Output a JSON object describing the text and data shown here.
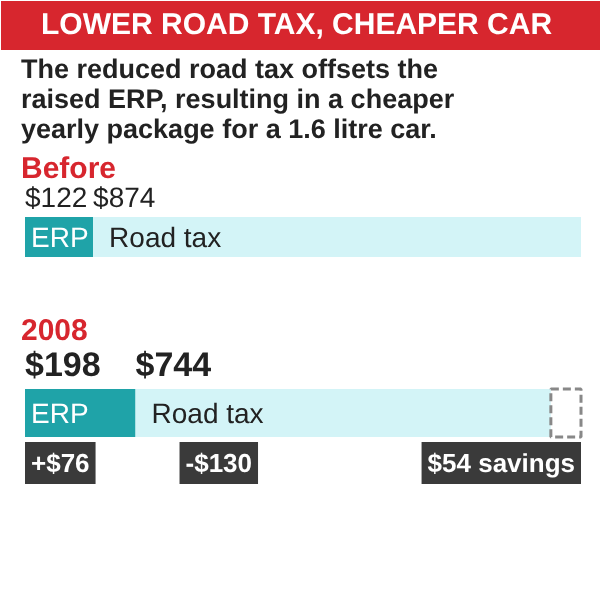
{
  "chart_data": {
    "type": "bar",
    "orientation": "horizontal",
    "stacked": true,
    "title": "LOWER ROAD TAX, CHEAPER CAR",
    "subtitle": "The reduced road tax offsets the raised ERP, resulting in a cheaper yearly package for a 1.6 litre car.",
    "categories": [
      "Before",
      "2008"
    ],
    "series": [
      {
        "name": "ERP",
        "color": "#1fa3a8",
        "values": [
          122,
          198
        ],
        "value_labels": [
          "$122",
          "$198"
        ]
      },
      {
        "name": "Road tax",
        "color": "#d3f4f7",
        "values": [
          874,
          744
        ],
        "value_labels": [
          "$874",
          "$744"
        ]
      },
      {
        "color": "#ffffff",
        "line_style": "dashed",
        "values": [
          null,
          54
        ]
      }
    ],
    "annotations": [
      "+$76",
      "-$130",
      "$54 savings"
    ]
  }
}
